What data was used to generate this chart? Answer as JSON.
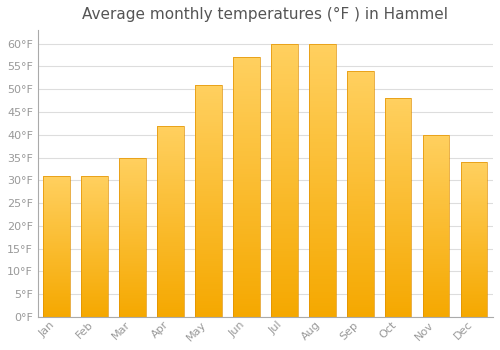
{
  "title": "Average monthly temperatures (°F ) in Hammel",
  "months": [
    "Jan",
    "Feb",
    "Mar",
    "Apr",
    "May",
    "Jun",
    "Jul",
    "Aug",
    "Sep",
    "Oct",
    "Nov",
    "Dec"
  ],
  "values": [
    31,
    31,
    35,
    42,
    51,
    57,
    60,
    60,
    54,
    48,
    40,
    34
  ],
  "bar_color_light": "#FFD060",
  "bar_color_dark": "#F5A800",
  "background_color": "#FFFFFF",
  "grid_color": "#DDDDDD",
  "ylim": [
    0,
    63
  ],
  "yticks": [
    0,
    5,
    10,
    15,
    20,
    25,
    30,
    35,
    40,
    45,
    50,
    55,
    60
  ],
  "title_fontsize": 11,
  "tick_fontsize": 8,
  "title_color": "#555555",
  "tick_color": "#999999",
  "bar_width": 0.7
}
